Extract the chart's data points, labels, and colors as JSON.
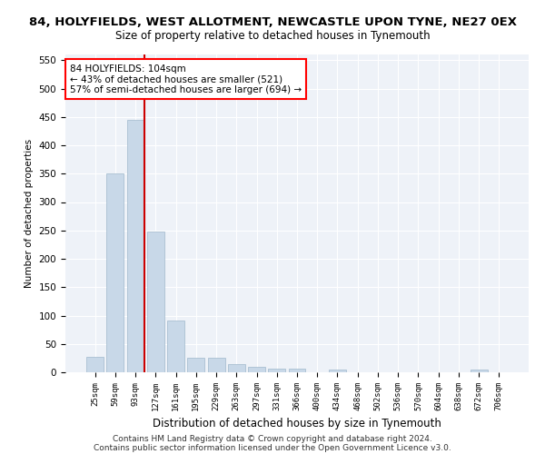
{
  "title": "84, HOLYFIELDS, WEST ALLOTMENT, NEWCASTLE UPON TYNE, NE27 0EX",
  "subtitle": "Size of property relative to detached houses in Tynemouth",
  "xlabel": "Distribution of detached houses by size in Tynemouth",
  "ylabel": "Number of detached properties",
  "bar_color": "#c8d8e8",
  "bar_edgecolor": "#a0b8cc",
  "categories": [
    "25sqm",
    "59sqm",
    "93sqm",
    "127sqm",
    "161sqm",
    "195sqm",
    "229sqm",
    "263sqm",
    "297sqm",
    "331sqm",
    "366sqm",
    "400sqm",
    "434sqm",
    "468sqm",
    "502sqm",
    "536sqm",
    "570sqm",
    "604sqm",
    "638sqm",
    "672sqm",
    "706sqm"
  ],
  "values": [
    27,
    350,
    445,
    248,
    92,
    25,
    25,
    14,
    10,
    7,
    6,
    0,
    5,
    0,
    0,
    0,
    0,
    0,
    0,
    5,
    0
  ],
  "ylim": [
    0,
    560
  ],
  "yticks": [
    0,
    50,
    100,
    150,
    200,
    250,
    300,
    350,
    400,
    450,
    500,
    550
  ],
  "annotation_text": "84 HOLYFIELDS: 104sqm\n← 43% of detached houses are smaller (521)\n57% of semi-detached houses are larger (694) →",
  "annotation_box_color": "white",
  "annotation_box_edgecolor": "red",
  "red_line_color": "#cc0000",
  "red_line_index": 2,
  "footer_line1": "Contains HM Land Registry data © Crown copyright and database right 2024.",
  "footer_line2": "Contains public sector information licensed under the Open Government Licence v3.0.",
  "background_color": "#eef2f8",
  "figsize": [
    6.0,
    5.0
  ],
  "dpi": 100
}
